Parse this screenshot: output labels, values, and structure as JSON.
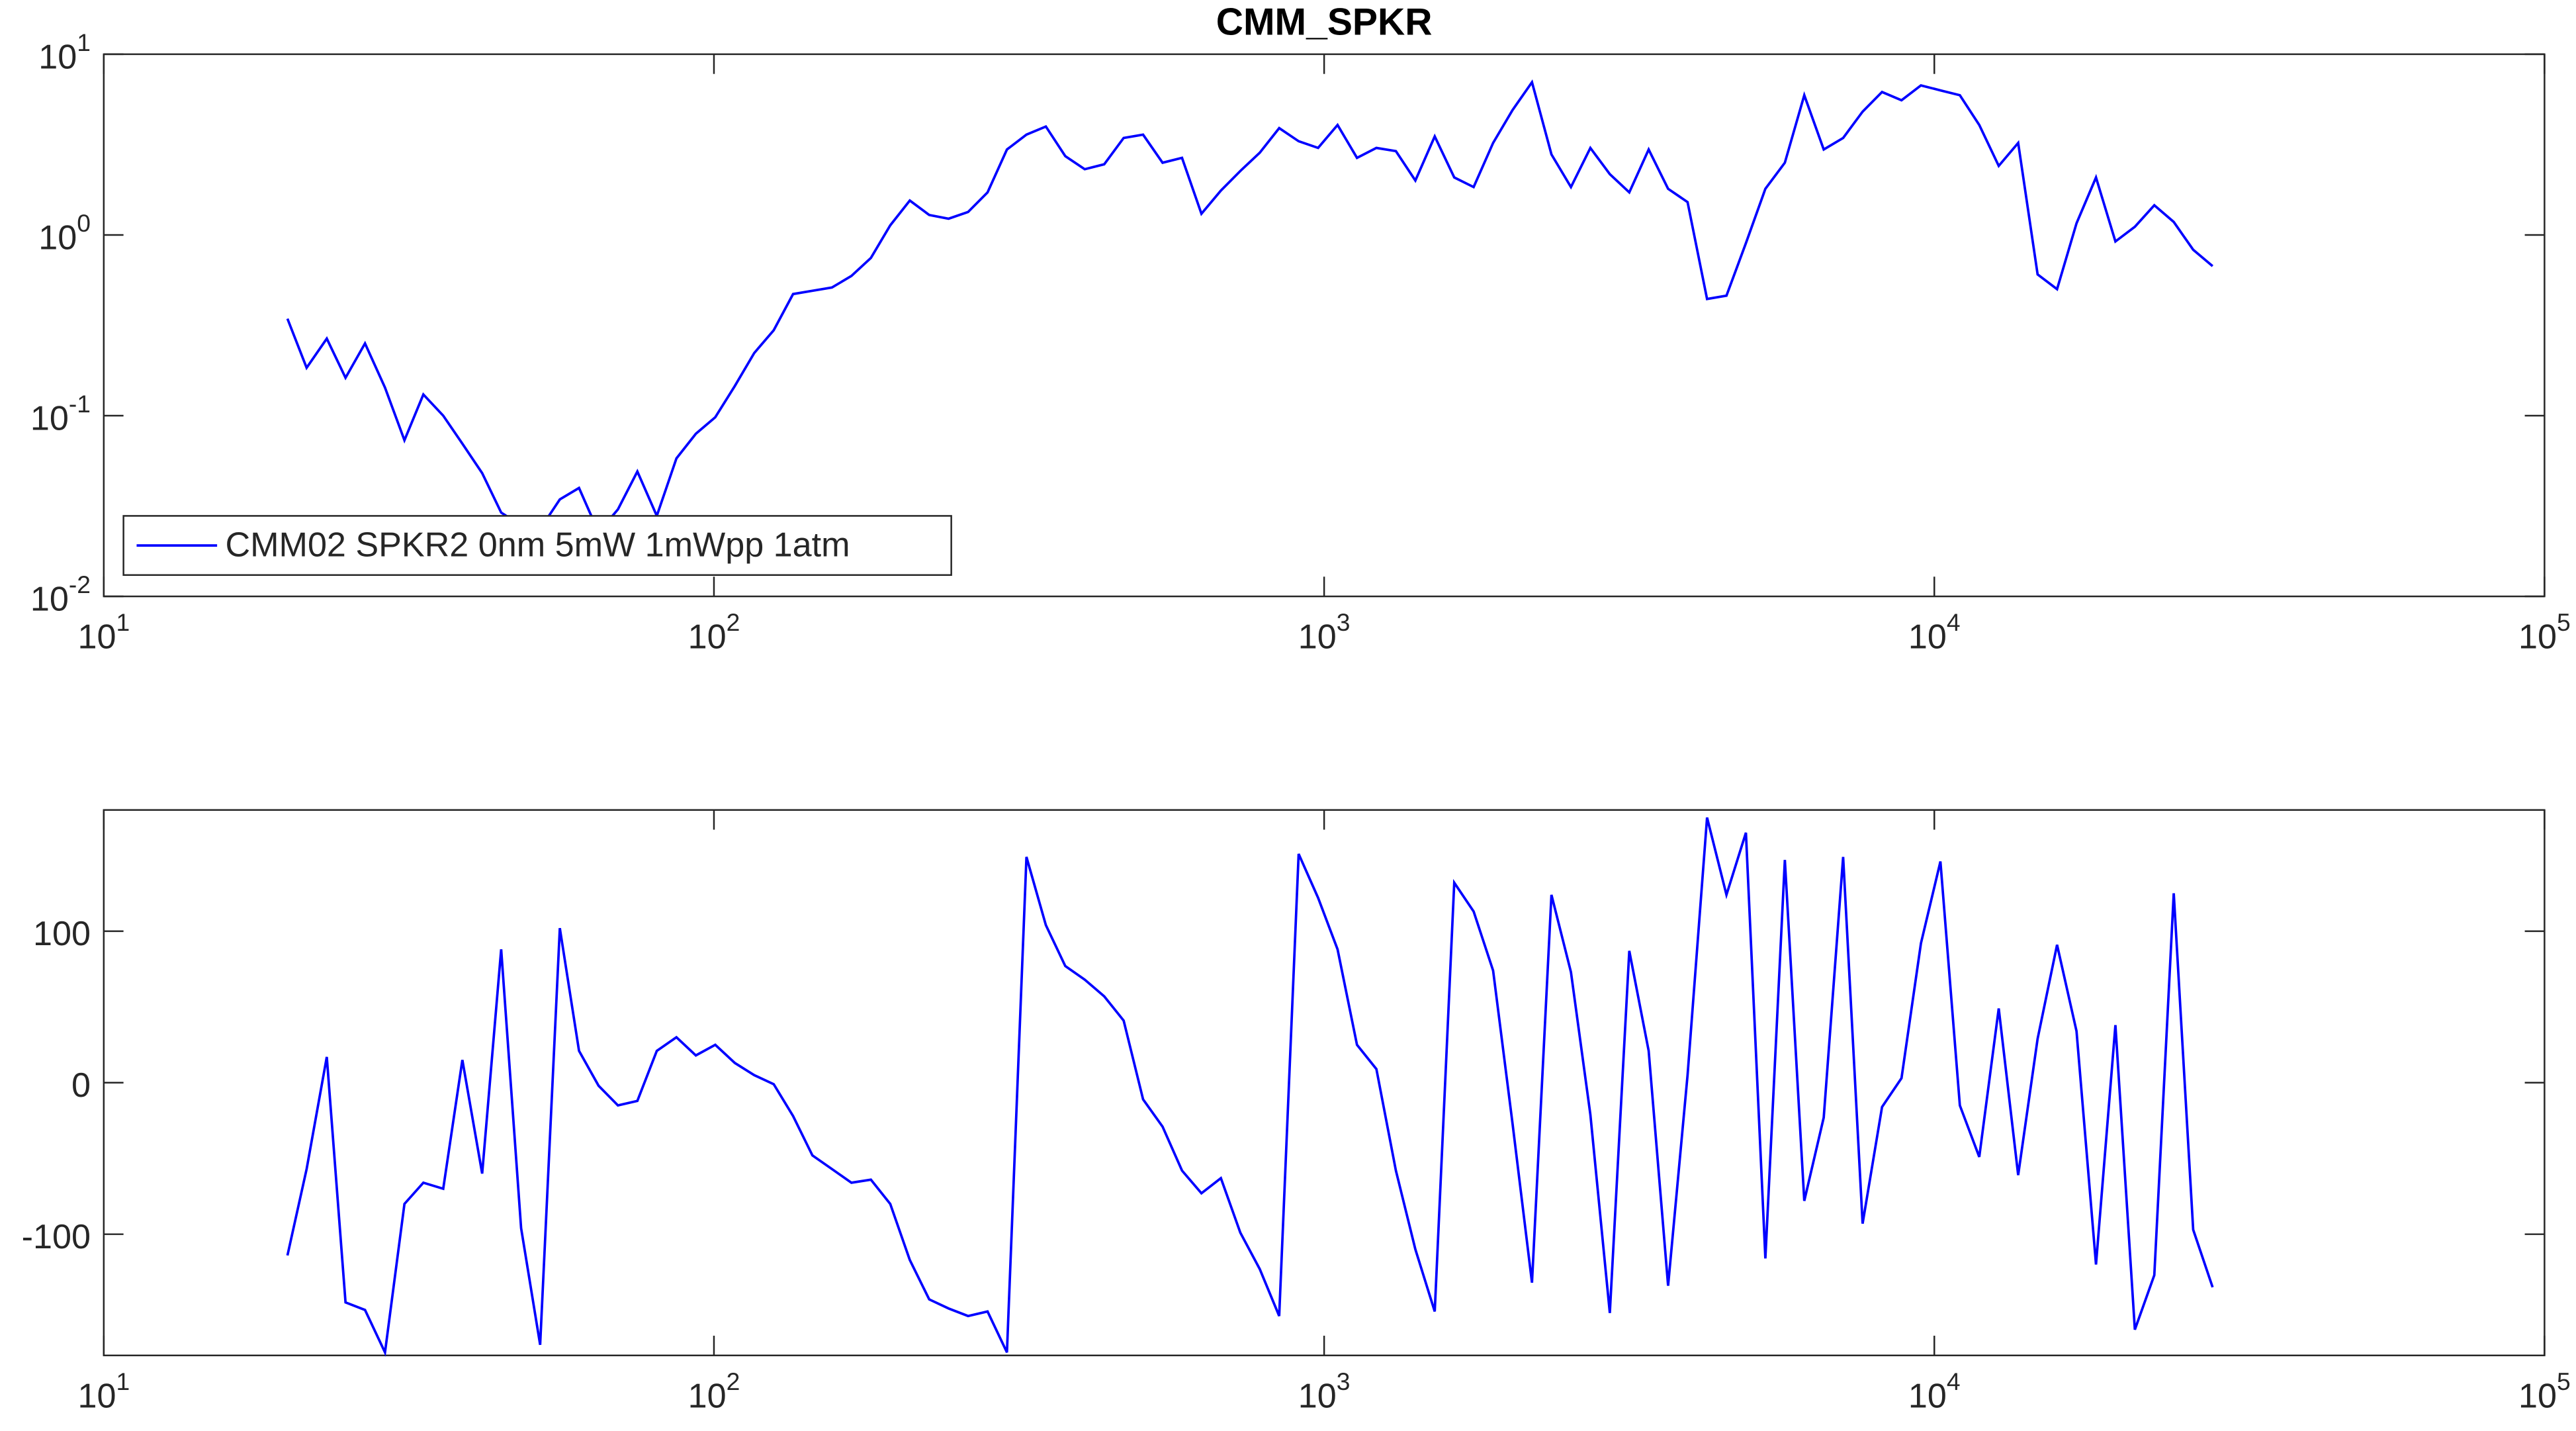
{
  "chart_data": [
    {
      "type": "line",
      "title": "CMM_SPKR",
      "xscale": "log",
      "yscale": "log",
      "legend": "southwest",
      "xlim": [
        10,
        100000
      ],
      "xticks": [
        {
          "value": 10,
          "label": "10^1"
        },
        {
          "value": 100,
          "label": "10^2"
        },
        {
          "value": 1000,
          "label": "10^3"
        },
        {
          "value": 10000,
          "label": "10^4"
        },
        {
          "value": 100000,
          "label": "10^5"
        }
      ],
      "ylim": [
        0.01,
        10
      ],
      "yticks": [
        {
          "value": 0.01,
          "label": "10^-2"
        },
        {
          "value": 0.1,
          "label": "10^-1"
        },
        {
          "value": 1,
          "label": "10^0"
        },
        {
          "value": 10,
          "label": "10^1"
        }
      ],
      "x": [
        20.0,
        21.5,
        23.2,
        24.9,
        26.8,
        28.9,
        31.1,
        33.4,
        36.0,
        38.7,
        41.7,
        44.8,
        48.3,
        51.9,
        55.9,
        60.1,
        64.7,
        69.6,
        74.9,
        80.6,
        86.8,
        93.4,
        100.5,
        108.2,
        116.4,
        125.3,
        134.8,
        145.0,
        156.1,
        168.0,
        180.8,
        194.5,
        209.4,
        225.3,
        242.4,
        260.9,
        280.8,
        302.1,
        325.2,
        349.9,
        376.5,
        405.2,
        436.1,
        469.3,
        505.0,
        543.5,
        584.9,
        629.4,
        677.3,
        728.9,
        784.3,
        844.0,
        908.3,
        977.5,
        1052,
        1132,
        1218,
        1311,
        1411,
        1518,
        1634,
        1758,
        1892,
        2036,
        2191,
        2358,
        2538,
        2731,
        2939,
        3163,
        3403,
        3662,
        3941,
        4242,
        4564,
        4912,
        5286,
        5689,
        6122,
        6588,
        7089,
        7629,
        8210,
        8836,
        9508,
        10233,
        11012,
        11849,
        12752,
        13723,
        14767,
        15891,
        17102,
        18407,
        19806,
        21314,
        22937,
        24682,
        26561,
        28583
      ],
      "series": [
        {
          "name": "CMM02 SPKR2 0nm 5mW 1mWpp 1atm",
          "color": "#0000ff",
          "values": [
            0.344,
            0.184,
            0.267,
            0.162,
            0.251,
            0.143,
            0.0731,
            0.131,
            0.1,
            0.07,
            0.0481,
            0.0291,
            0.0246,
            0.0236,
            0.0344,
            0.0398,
            0.0226,
            0.0303,
            0.0491,
            0.0279,
            0.058,
            0.0794,
            0.098,
            0.146,
            0.222,
            0.297,
            0.471,
            0.491,
            0.512,
            0.593,
            0.746,
            1.13,
            1.55,
            1.29,
            1.23,
            1.34,
            1.72,
            2.97,
            3.59,
            3.98,
            2.73,
            2.31,
            2.46,
            3.44,
            3.59,
            2.51,
            2.67,
            1.31,
            1.76,
            2.26,
            2.85,
            3.9,
            3.3,
            3.03,
            4.06,
            2.67,
            3.03,
            2.91,
            2.0,
            3.51,
            2.08,
            1.84,
            3.23,
            4.91,
            7.0,
            2.79,
            1.84,
            3.03,
            2.17,
            1.72,
            2.97,
            1.8,
            1.52,
            0.442,
            0.461,
            0.901,
            1.8,
            2.51,
            5.93,
            2.97,
            3.44,
            4.81,
            6.18,
            5.56,
            6.72,
            6.31,
            5.93,
            4.06,
            2.41,
            3.23,
            0.605,
            0.501,
            1.16,
            2.08,
            0.92,
            1.11,
            1.46,
            1.18,
            0.828,
            0.672
          ]
        }
      ]
    },
    {
      "type": "line",
      "xscale": "log",
      "xlim": [
        10,
        100000
      ],
      "xticks": [
        {
          "value": 10,
          "label": "10^1"
        },
        {
          "value": 100,
          "label": "10^2"
        },
        {
          "value": 1000,
          "label": "10^3"
        },
        {
          "value": 10000,
          "label": "10^4"
        },
        {
          "value": 100000,
          "label": "10^5"
        }
      ],
      "ylim": [
        -180,
        180
      ],
      "yticks": [
        -100,
        0,
        100
      ],
      "x": [
        20.0,
        21.5,
        23.2,
        24.9,
        26.8,
        28.9,
        31.1,
        33.4,
        36.0,
        38.7,
        41.7,
        44.8,
        48.3,
        51.9,
        55.9,
        60.1,
        64.7,
        69.6,
        74.9,
        80.6,
        86.8,
        93.4,
        100.5,
        108.2,
        116.4,
        125.3,
        134.8,
        145.0,
        156.1,
        168.0,
        180.8,
        194.5,
        209.4,
        225.3,
        242.4,
        260.9,
        280.8,
        302.1,
        325.2,
        349.9,
        376.5,
        405.2,
        436.1,
        469.3,
        505.0,
        543.5,
        584.9,
        629.4,
        677.3,
        728.9,
        784.3,
        844.0,
        908.3,
        977.5,
        1052,
        1132,
        1218,
        1311,
        1411,
        1518,
        1634,
        1758,
        1892,
        2036,
        2191,
        2358,
        2538,
        2731,
        2939,
        3163,
        3403,
        3662,
        3941,
        4242,
        4564,
        4912,
        5286,
        5689,
        6122,
        6588,
        7089,
        7629,
        8210,
        8836,
        9508,
        10233,
        11012,
        11849,
        12752,
        13723,
        14767,
        15891,
        17102,
        18407,
        19806,
        21314,
        22937,
        24682,
        26561,
        28583
      ],
      "color": "#0000ff",
      "values": [
        -114,
        -57,
        17,
        -145,
        -150,
        -178,
        -80,
        -66,
        -70,
        15,
        -60,
        88,
        -96,
        -173,
        102,
        21,
        -2,
        -15,
        -12,
        21,
        30,
        18,
        25,
        13,
        5,
        -1,
        -22,
        -48,
        -57,
        -66,
        -64,
        -80,
        -117,
        -143,
        -149,
        -154,
        -151,
        -178,
        149,
        104,
        77,
        68,
        57,
        41,
        -11,
        -29,
        -58,
        -73,
        -63,
        -99,
        -123,
        -154,
        151,
        122,
        88,
        25,
        9,
        -58,
        -110,
        -151,
        132,
        113,
        74,
        -27,
        -132,
        124,
        73,
        -21,
        -152,
        87,
        21,
        -134,
        5,
        175,
        124,
        165,
        -116,
        147,
        -78,
        -23,
        149,
        -93,
        -16,
        3,
        92,
        146,
        -15,
        -49,
        49,
        -61,
        29,
        91,
        34,
        -120,
        38,
        -163,
        -127,
        125,
        -97,
        -135
      ]
    }
  ]
}
